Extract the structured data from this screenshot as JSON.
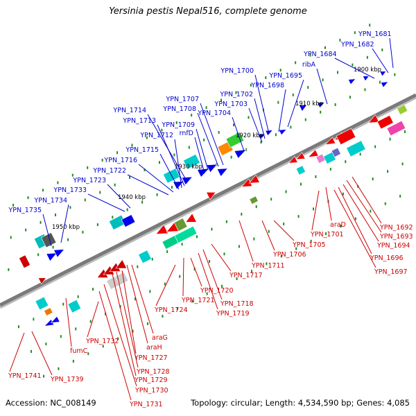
{
  "title": "Yersinia pestis Nepal516, complete genome",
  "accession": "Accession: NC_008149",
  "summary": "Topology: circular; Length: 4,534,590 bp; Genes: 4,085",
  "colors": {
    "backbone": "#7a7a7a",
    "forward_label": "#0000cc",
    "reverse_label": "#cc0000",
    "tick": "#228b22"
  },
  "kbp_labels": [
    "1900 kbp",
    "1910 kbp",
    "1920 kbp",
    "1930 kbp",
    "1940 kbp",
    "1950 kbp"
  ],
  "forward_labels": [
    "YPN_1681",
    "YPN_1682",
    "YPN_1684",
    "ribA",
    "YPN_1695",
    "YPN_1698",
    "YPN_1700",
    "YPN_1702",
    "YPN_1703",
    "YPN_1704",
    "YPN_1707",
    "YPN_1708",
    "YPN_1709",
    "rnfD",
    "YPN_1714",
    "YPN_1713",
    "YPN_1712",
    "YPN_1715",
    "YPN_1716",
    "YPN_1722",
    "YPN_1723",
    "YPN_1733",
    "YPN_1734",
    "YPN_1735"
  ],
  "reverse_labels": [
    "YPN_1692",
    "YPN_1693",
    "YPN_1694",
    "YPN_1696",
    "YPN_1697",
    "araD",
    "YPN_1701",
    "YPN_1705",
    "YPN_1706",
    "YPN_1711",
    "YPN_1717",
    "YPN_1718",
    "YPN_1719",
    "YPN_1720",
    "YPN_1721",
    "YPN_1724",
    "araG",
    "araH",
    "YPN_1727",
    "YPN_1728",
    "YPN_1729",
    "YPN_1730",
    "YPN_1731",
    "YPN_1732",
    "fumC",
    "YPN_1739",
    "YPN_1741"
  ]
}
